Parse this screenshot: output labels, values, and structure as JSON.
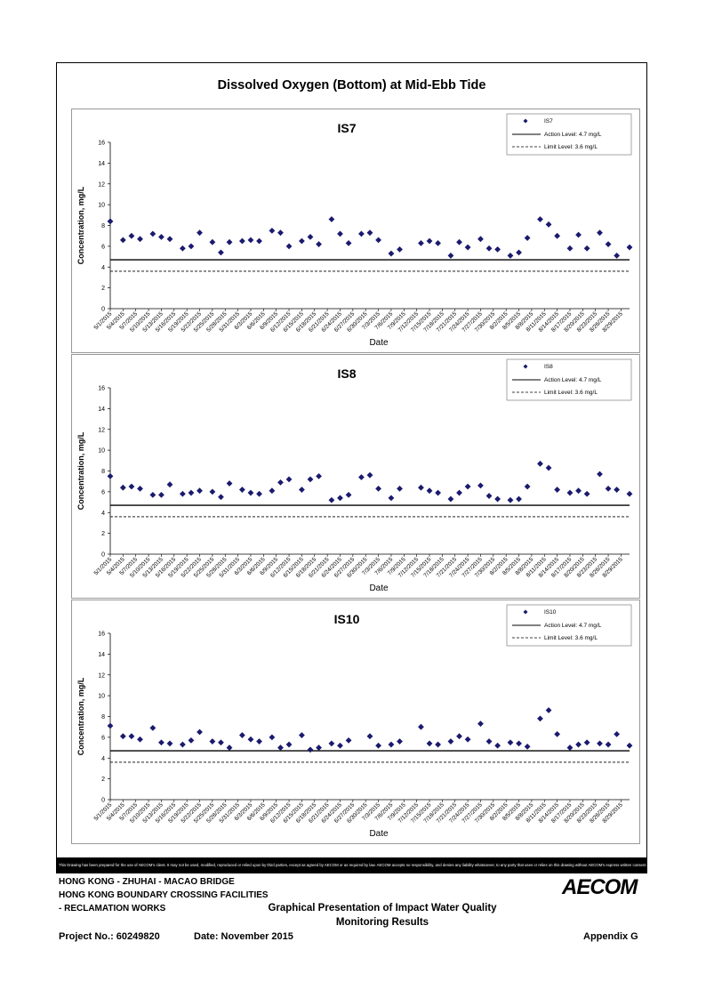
{
  "page": {
    "title": "Dissolved Oxygen (Bottom) at Mid-Ebb Tide",
    "disclaimer": "This Drawing has been prepared for the use of AECOM's client. It may not be used, modified, reproduced or relied upon by third parties, except as agreed by AECOM or as required by law. AECOM accepts no responsibility, and denies any liability whatsoever, to any party that uses or relies on this drawing without AECOM's express written consent.",
    "footer": {
      "line1": "HONG KONG - ZHUHAI - MACAO BRIDGE",
      "line2": "HONG KONG BOUNDARY CROSSING FACILITIES",
      "line3": "- RECLAMATION WORKS",
      "caption_line1": "Graphical Presentation of Impact Water Quality",
      "caption_line2": "Monitoring Results",
      "project_no": "Project No.: 60249820",
      "date": "Date: November 2015",
      "appendix": "Appendix G",
      "logo": "AECOM"
    },
    "colors": {
      "marker": "#1a1a6e",
      "line": "#000000"
    }
  },
  "chart_data": [
    {
      "type": "scatter",
      "title": "IS7",
      "xlabel": "Date",
      "ylabel": "Concentration, mg/L",
      "ylim": [
        0,
        16
      ],
      "yticks": [
        "0",
        "2",
        "4",
        "6",
        "8",
        "10",
        "12",
        "14",
        "16"
      ],
      "grid": false,
      "legend_position": "top-right",
      "tick_labels": [
        "5/1/2015",
        "5/4/2015",
        "5/7/2015",
        "5/10/2015",
        "5/13/2015",
        "5/16/2015",
        "5/19/2015",
        "5/22/2015",
        "5/25/2015",
        "5/28/2015",
        "5/31/2015",
        "6/3/2015",
        "6/6/2015",
        "6/9/2015",
        "6/12/2015",
        "6/15/2015",
        "6/18/2015",
        "6/21/2015",
        "6/24/2015",
        "6/27/2015",
        "6/30/2015",
        "7/3/2015",
        "7/6/2015",
        "7/9/2015",
        "7/12/2015",
        "7/15/2015",
        "7/18/2015",
        "7/21/2015",
        "7/24/2015",
        "7/27/2015",
        "7/30/2015",
        "8/2/2015",
        "8/5/2015",
        "8/8/2015",
        "8/11/2015",
        "8/14/2015",
        "8/17/2015",
        "8/20/2015",
        "8/23/2015",
        "8/26/2015",
        "8/29/2015"
      ],
      "x_range": [
        "5/1/2015",
        "8/31/2015"
      ],
      "series": [
        {
          "name": "IS7",
          "x": [
            "5/1/2015",
            "5/4/2015",
            "5/6/2015",
            "5/8/2015",
            "5/11/2015",
            "5/13/2015",
            "5/15/2015",
            "5/18/2015",
            "5/20/2015",
            "5/22/2015",
            "5/25/2015",
            "5/27/2015",
            "5/29/2015",
            "6/1/2015",
            "6/3/2015",
            "6/5/2015",
            "6/8/2015",
            "6/10/2015",
            "6/12/2015",
            "6/15/2015",
            "6/17/2015",
            "6/19/2015",
            "6/22/2015",
            "6/24/2015",
            "6/26/2015",
            "6/29/2015",
            "7/1/2015",
            "7/3/2015",
            "7/6/2015",
            "7/8/2015",
            "7/13/2015",
            "7/15/2015",
            "7/17/2015",
            "7/20/2015",
            "7/22/2015",
            "7/24/2015",
            "7/27/2015",
            "7/29/2015",
            "7/31/2015",
            "8/3/2015",
            "8/5/2015",
            "8/7/2015",
            "8/10/2015",
            "8/12/2015",
            "8/14/2015",
            "8/17/2015",
            "8/19/2015",
            "8/21/2015",
            "8/24/2015",
            "8/26/2015",
            "8/28/2015",
            "8/31/2015"
          ],
          "y": [
            8.4,
            6.6,
            7.0,
            6.7,
            7.2,
            6.9,
            6.7,
            5.8,
            6.0,
            7.3,
            6.4,
            5.4,
            6.4,
            6.5,
            6.6,
            6.5,
            7.5,
            7.3,
            6.0,
            6.5,
            6.9,
            6.2,
            8.6,
            7.2,
            6.3,
            7.2,
            7.3,
            6.6,
            5.3,
            5.7,
            6.3,
            6.5,
            6.3,
            5.1,
            6.4,
            5.9,
            6.7,
            5.8,
            5.7,
            5.1,
            5.4,
            6.8,
            8.6,
            8.1,
            7.0,
            5.8,
            7.1,
            5.8,
            7.3,
            6.2,
            5.1,
            5.9
          ]
        },
        {
          "name": "Action Level: 4.7 mg/L",
          "value": 4.7,
          "style": "solid"
        },
        {
          "name": "Limit Level: 3.6 mg/L",
          "value": 3.6,
          "style": "dashed"
        }
      ]
    },
    {
      "type": "scatter",
      "title": "IS8",
      "xlabel": "Date",
      "ylabel": "Concentration, mg/L",
      "ylim": [
        0,
        16
      ],
      "yticks": [
        "0",
        "2",
        "4",
        "6",
        "8",
        "10",
        "12",
        "14",
        "16"
      ],
      "grid": false,
      "legend_position": "top-right",
      "tick_labels": [
        "5/1/2015",
        "5/4/2015",
        "5/7/2015",
        "5/10/2015",
        "5/13/2015",
        "5/16/2015",
        "5/19/2015",
        "5/22/2015",
        "5/25/2015",
        "5/28/2015",
        "5/31/2015",
        "6/3/2015",
        "6/6/2015",
        "6/9/2015",
        "6/12/2015",
        "6/15/2015",
        "6/18/2015",
        "6/21/2015",
        "6/24/2015",
        "6/27/2015",
        "6/30/2015",
        "7/3/2015",
        "7/6/2015",
        "7/9/2015",
        "7/12/2015",
        "7/15/2015",
        "7/18/2015",
        "7/21/2015",
        "7/24/2015",
        "7/27/2015",
        "7/30/2015",
        "8/2/2015",
        "8/5/2015",
        "8/8/2015",
        "8/11/2015",
        "8/14/2015",
        "8/17/2015",
        "8/20/2015",
        "8/23/2015",
        "8/26/2015",
        "8/29/2015"
      ],
      "x_range": [
        "5/1/2015",
        "8/31/2015"
      ],
      "series": [
        {
          "name": "IS8",
          "x": [
            "5/1/2015",
            "5/4/2015",
            "5/6/2015",
            "5/8/2015",
            "5/11/2015",
            "5/13/2015",
            "5/15/2015",
            "5/18/2015",
            "5/20/2015",
            "5/22/2015",
            "5/25/2015",
            "5/27/2015",
            "5/29/2015",
            "6/1/2015",
            "6/3/2015",
            "6/5/2015",
            "6/8/2015",
            "6/10/2015",
            "6/12/2015",
            "6/15/2015",
            "6/17/2015",
            "6/19/2015",
            "6/22/2015",
            "6/24/2015",
            "6/26/2015",
            "6/29/2015",
            "7/1/2015",
            "7/3/2015",
            "7/6/2015",
            "7/8/2015",
            "7/13/2015",
            "7/15/2015",
            "7/17/2015",
            "7/20/2015",
            "7/22/2015",
            "7/24/2015",
            "7/27/2015",
            "7/29/2015",
            "7/31/2015",
            "8/3/2015",
            "8/5/2015",
            "8/7/2015",
            "8/10/2015",
            "8/12/2015",
            "8/14/2015",
            "8/17/2015",
            "8/19/2015",
            "8/21/2015",
            "8/24/2015",
            "8/26/2015",
            "8/28/2015",
            "8/31/2015"
          ],
          "y": [
            7.5,
            6.4,
            6.5,
            6.3,
            5.7,
            5.7,
            6.7,
            5.8,
            5.9,
            6.1,
            6.0,
            5.5,
            6.8,
            6.2,
            5.9,
            5.8,
            6.1,
            6.9,
            7.2,
            6.2,
            7.2,
            7.5,
            5.2,
            5.4,
            5.7,
            7.4,
            7.6,
            6.3,
            5.4,
            6.3,
            6.4,
            6.1,
            5.9,
            5.3,
            5.9,
            6.5,
            6.6,
            5.6,
            5.3,
            5.2,
            5.3,
            6.5,
            8.7,
            8.3,
            6.2,
            5.9,
            6.1,
            5.8,
            7.7,
            6.3,
            6.2,
            5.8
          ]
        },
        {
          "name": "Action Level: 4.7 mg/L",
          "value": 4.7,
          "style": "solid"
        },
        {
          "name": "Limit Level: 3.6 mg/L",
          "value": 3.6,
          "style": "dashed"
        }
      ]
    },
    {
      "type": "scatter",
      "title": "IS10",
      "xlabel": "Date",
      "ylabel": "Concentration, mg/L",
      "ylim": [
        0,
        16
      ],
      "yticks": [
        "0",
        "2",
        "4",
        "6",
        "8",
        "10",
        "12",
        "14",
        "16"
      ],
      "grid": false,
      "legend_position": "top-right",
      "tick_labels": [
        "5/1/2015",
        "5/4/2015",
        "5/7/2015",
        "5/10/2015",
        "5/13/2015",
        "5/16/2015",
        "5/19/2015",
        "5/22/2015",
        "5/25/2015",
        "5/28/2015",
        "5/31/2015",
        "6/3/2015",
        "6/6/2015",
        "6/9/2015",
        "6/12/2015",
        "6/15/2015",
        "6/18/2015",
        "6/21/2015",
        "6/24/2015",
        "6/27/2015",
        "6/30/2015",
        "7/3/2015",
        "7/6/2015",
        "7/9/2015",
        "7/12/2015",
        "7/15/2015",
        "7/18/2015",
        "7/21/2015",
        "7/24/2015",
        "7/27/2015",
        "7/30/2015",
        "8/2/2015",
        "8/5/2015",
        "8/8/2015",
        "8/11/2015",
        "8/14/2015",
        "8/17/2015",
        "8/20/2015",
        "8/23/2015",
        "8/26/2015",
        "8/29/2015"
      ],
      "x_range": [
        "5/1/2015",
        "8/31/2015"
      ],
      "series": [
        {
          "name": "IS10",
          "x": [
            "5/1/2015",
            "5/4/2015",
            "5/6/2015",
            "5/8/2015",
            "5/11/2015",
            "5/13/2015",
            "5/15/2015",
            "5/18/2015",
            "5/20/2015",
            "5/22/2015",
            "5/25/2015",
            "5/27/2015",
            "5/29/2015",
            "6/1/2015",
            "6/3/2015",
            "6/5/2015",
            "6/8/2015",
            "6/10/2015",
            "6/12/2015",
            "6/15/2015",
            "6/17/2015",
            "6/19/2015",
            "6/22/2015",
            "6/24/2015",
            "6/26/2015",
            "7/1/2015",
            "7/3/2015",
            "7/6/2015",
            "7/8/2015",
            "7/13/2015",
            "7/15/2015",
            "7/17/2015",
            "7/20/2015",
            "7/22/2015",
            "7/24/2015",
            "7/27/2015",
            "7/29/2015",
            "7/31/2015",
            "8/3/2015",
            "8/5/2015",
            "8/7/2015",
            "8/10/2015",
            "8/12/2015",
            "8/14/2015",
            "8/17/2015",
            "8/19/2015",
            "8/21/2015",
            "8/24/2015",
            "8/26/2015",
            "8/28/2015",
            "8/31/2015"
          ],
          "y": [
            7.1,
            6.1,
            6.1,
            5.8,
            6.9,
            5.5,
            5.4,
            5.3,
            5.7,
            6.5,
            5.6,
            5.5,
            5.0,
            6.2,
            5.8,
            5.6,
            6.0,
            5.0,
            5.3,
            6.2,
            4.8,
            5.0,
            5.4,
            5.2,
            5.7,
            6.1,
            5.2,
            5.3,
            5.6,
            7.0,
            5.4,
            5.3,
            5.6,
            6.1,
            5.8,
            7.3,
            5.6,
            5.2,
            5.5,
            5.4,
            5.1,
            7.8,
            8.6,
            6.3,
            5.0,
            5.3,
            5.5,
            5.4,
            5.3,
            6.3,
            5.2
          ]
        },
        {
          "name": "Action Level: 4.7 mg/L",
          "value": 4.7,
          "style": "solid"
        },
        {
          "name": "Limit Level: 3.6 mg/L",
          "value": 3.6,
          "style": "dashed"
        }
      ]
    }
  ]
}
